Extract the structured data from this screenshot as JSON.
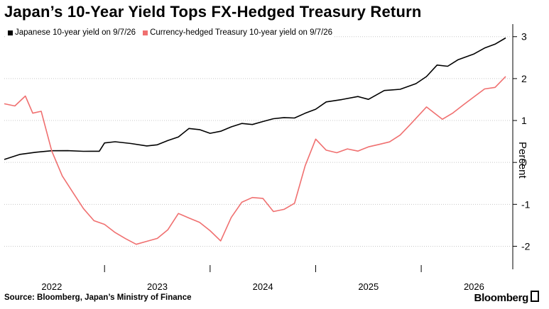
{
  "title": "Japan’s 10-Year Yield Tops FX-Hedged Treasury Return",
  "footer": {
    "source": "Source: Bloomberg, Japan’s Ministry of Finance",
    "brand": "Bloomberg"
  },
  "colors": {
    "japan": "#000000",
    "hedged": "#f07070",
    "grid": "#c8c8c8"
  },
  "chart_data": {
    "type": "line",
    "title": "Japan’s 10-Year Yield Tops FX-Hedged Treasury Return",
    "ylabel": "Percent",
    "xlabel": "",
    "ylim": [
      -2.55,
      3.3
    ],
    "yticks": [
      -2,
      -1,
      0,
      1,
      2,
      3
    ],
    "ytick_labels": [
      "-2",
      "-1",
      "0",
      "1",
      "2",
      "3"
    ],
    "xlim": [
      2021.55,
      2026.3
    ],
    "xticks": [
      2022,
      2023,
      2024,
      2025,
      2026
    ],
    "xtick_labels": [
      "2022",
      "2023",
      "2024",
      "2025",
      "2026"
    ],
    "year_boundaries": [
      2022.5,
      2023.5,
      2024.5,
      2025.5
    ],
    "grid": true,
    "legend_position": "top-left",
    "series": [
      {
        "name": "Japanese 10-year yield on 9/7/26",
        "color": "#000000",
        "x": [
          2021.55,
          2021.7,
          2021.85,
          2022.0,
          2022.15,
          2022.3,
          2022.45,
          2022.5,
          2022.6,
          2022.75,
          2022.9,
          2023.0,
          2023.1,
          2023.2,
          2023.3,
          2023.4,
          2023.5,
          2023.6,
          2023.7,
          2023.8,
          2023.9,
          2024.0,
          2024.1,
          2024.2,
          2024.3,
          2024.4,
          2024.5,
          2024.6,
          2024.75,
          2024.9,
          2025.0,
          2025.15,
          2025.3,
          2025.45,
          2025.55,
          2025.65,
          2025.75,
          2025.85,
          2026.0,
          2026.1,
          2026.2,
          2026.3
        ],
        "values": [
          0.07,
          0.18,
          0.22,
          0.25,
          0.25,
          0.24,
          0.25,
          0.46,
          0.5,
          0.47,
          0.42,
          0.45,
          0.55,
          0.63,
          0.82,
          0.78,
          0.68,
          0.72,
          0.82,
          0.9,
          0.88,
          0.96,
          1.04,
          1.08,
          1.08,
          1.2,
          1.3,
          1.47,
          1.52,
          1.58,
          1.5,
          1.7,
          1.72,
          1.85,
          2.02,
          2.3,
          2.28,
          2.45,
          2.6,
          2.75,
          2.85,
          2.97
        ]
      },
      {
        "name": "Currency-hedged Treasury 10-year yield on 9/7/26",
        "color": "#f07070",
        "x": [
          2021.55,
          2021.65,
          2021.75,
          2021.82,
          2021.9,
          2022.0,
          2022.1,
          2022.2,
          2022.3,
          2022.4,
          2022.5,
          2022.6,
          2022.7,
          2022.8,
          2022.9,
          2023.0,
          2023.1,
          2023.2,
          2023.3,
          2023.4,
          2023.5,
          2023.6,
          2023.7,
          2023.8,
          2023.9,
          2024.0,
          2024.1,
          2024.2,
          2024.3,
          2024.4,
          2024.5,
          2024.6,
          2024.7,
          2024.8,
          2024.9,
          2025.0,
          2025.1,
          2025.2,
          2025.3,
          2025.4,
          2025.55,
          2025.7,
          2025.8,
          2025.9,
          2026.0,
          2026.1,
          2026.2,
          2026.3
        ],
        "values": [
          1.4,
          1.35,
          1.6,
          1.2,
          1.25,
          0.3,
          -0.3,
          -0.7,
          -1.1,
          -1.4,
          -1.5,
          -1.7,
          -1.85,
          -1.98,
          -1.9,
          -1.82,
          -1.6,
          -1.2,
          -1.3,
          -1.4,
          -1.6,
          -1.85,
          -1.3,
          -0.95,
          -0.85,
          -0.88,
          -1.2,
          -1.15,
          -1.0,
          -0.1,
          0.55,
          0.3,
          0.25,
          0.35,
          0.3,
          0.4,
          0.45,
          0.5,
          0.65,
          0.9,
          1.3,
          1.0,
          1.15,
          1.35,
          1.55,
          1.75,
          1.8,
          2.05
        ]
      }
    ]
  }
}
